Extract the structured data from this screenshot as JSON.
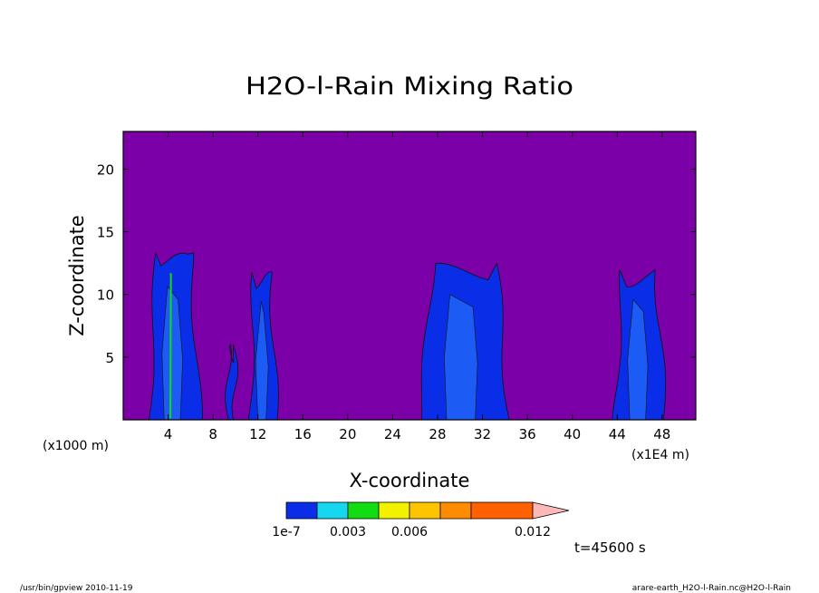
{
  "chart_data": {
    "type": "heatmap",
    "title": "H2O-l-Rain Mixing Ratio",
    "xlabel": "X-coordinate",
    "ylabel": "Z-coordinate",
    "x_scale_left": "(x1000 m)",
    "x_scale_right": "(x1E4 m)",
    "xlim": [
      0,
      51
    ],
    "ylim": [
      0,
      23
    ],
    "xticks": [
      4,
      8,
      12,
      16,
      20,
      24,
      28,
      32,
      36,
      40,
      44,
      48
    ],
    "yticks": [
      5,
      10,
      15,
      20
    ],
    "background_color": "#7b00a8",
    "colorbar": {
      "levels": [
        1e-07,
        0.0015,
        0.003,
        0.0045,
        0.006,
        0.0075,
        0.009,
        0.012
      ],
      "colors": [
        "#0a2ee8",
        "#17d6f0",
        "#12dc12",
        "#f2f200",
        "#ffc400",
        "#ff8c00",
        "#ff6000",
        "#ff1a1a",
        "#ff7f7f",
        "#ffb8b8"
      ],
      "labels": [
        {
          "value": 1e-07,
          "text": "1e-7"
        },
        {
          "value": 0.003,
          "text": "0.003"
        },
        {
          "value": 0.006,
          "text": "0.006"
        },
        {
          "value": 0.012,
          "text": "0.012"
        }
      ]
    },
    "rain_cells": [
      {
        "x_range": [
          2.3,
          6.8
        ],
        "z_top": 13.3,
        "level": "1e-7"
      },
      {
        "x_range": [
          9.3,
          10.0
        ],
        "z_top": 6.0,
        "level": "1e-7"
      },
      {
        "x_range": [
          11.3,
          13.6
        ],
        "z_top": 11.8,
        "level": "1e-7"
      },
      {
        "x_range": [
          26.4,
          34.4
        ],
        "z_top": 12.5,
        "level": "1e-7"
      },
      {
        "x_range": [
          43.8,
          48.2
        ],
        "z_top": 12.0,
        "level": "1e-7"
      }
    ]
  },
  "time_label": "t=45600 s",
  "footer_left": "/usr/bin/gpview   2010-11-19",
  "footer_right": "arare-earth_H2O-l-Rain.nc@H2O-l-Rain"
}
